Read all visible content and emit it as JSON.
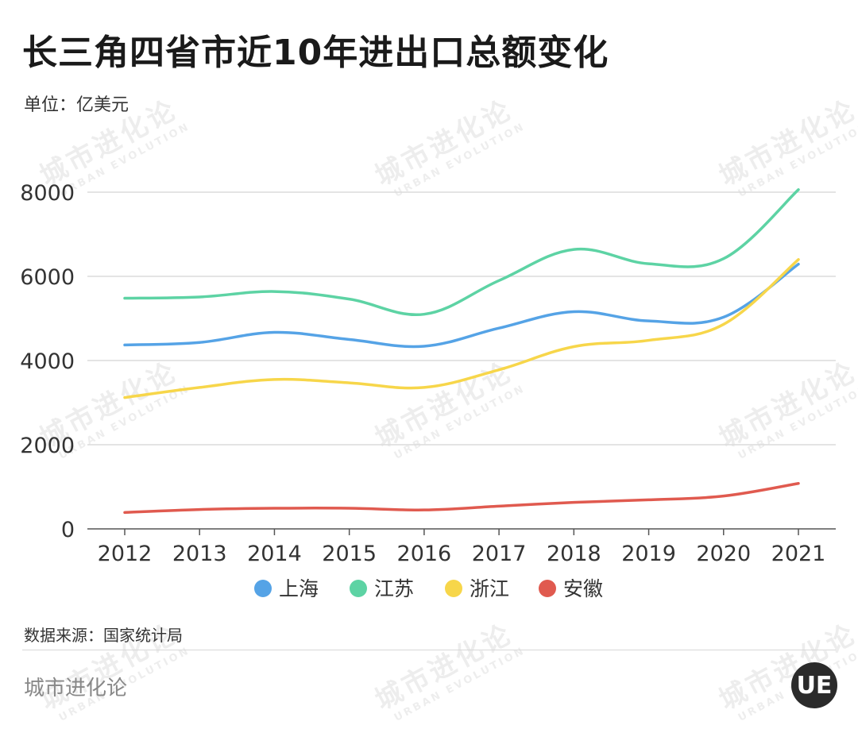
{
  "title": "长三角四省市近10年进出口总额变化",
  "unit": "单位：亿美元",
  "source": "数据来源：国家统计局",
  "brand": "城市进化论",
  "watermark": {
    "cn": "城市进化论",
    "en": "URBAN EVOLUTION"
  },
  "logo_text": "UE",
  "chart_data": {
    "type": "line",
    "title": "长三角四省市近10年进出口总额变化",
    "xlabel": "",
    "ylabel": "单位：亿美元",
    "ylim": [
      0,
      8000
    ],
    "yticks": [
      0,
      2000,
      4000,
      6000,
      8000
    ],
    "categories": [
      "2012",
      "2013",
      "2014",
      "2015",
      "2016",
      "2017",
      "2018",
      "2019",
      "2020",
      "2021"
    ],
    "grid": true,
    "legend_position": "bottom-center",
    "series": [
      {
        "name": "上海",
        "color": "#55a3e6",
        "values": [
          4370,
          4430,
          4670,
          4500,
          4340,
          4770,
          5160,
          4940,
          5030,
          6290
        ]
      },
      {
        "name": "江苏",
        "color": "#5dd3a4",
        "values": [
          5480,
          5510,
          5640,
          5460,
          5100,
          5900,
          6640,
          6300,
          6420,
          8060
        ]
      },
      {
        "name": "浙江",
        "color": "#f7d64a",
        "values": [
          3120,
          3360,
          3550,
          3470,
          3360,
          3780,
          4330,
          4480,
          4860,
          6400
        ]
      },
      {
        "name": "安徽",
        "color": "#e05a4f",
        "values": [
          390,
          460,
          490,
          490,
          450,
          540,
          630,
          690,
          780,
          1080
        ]
      }
    ]
  }
}
